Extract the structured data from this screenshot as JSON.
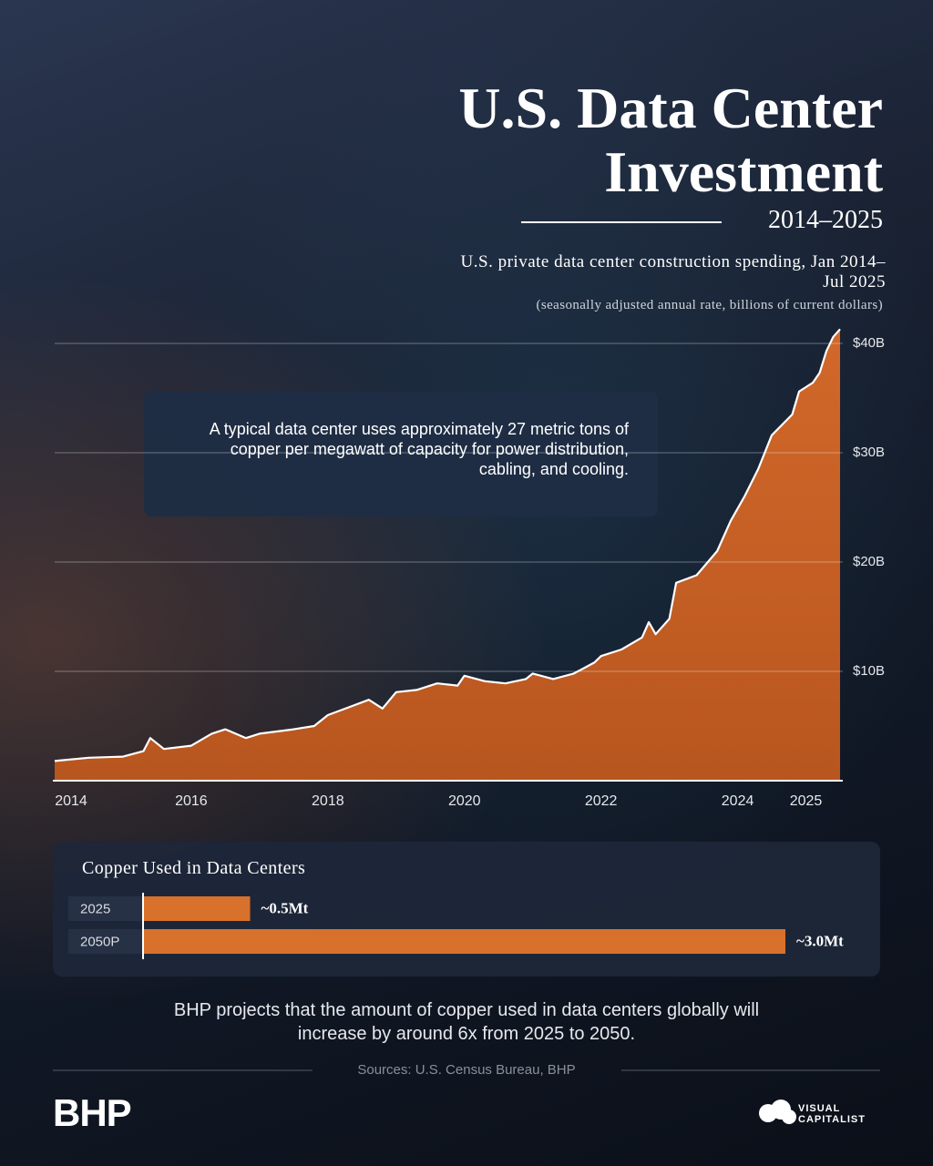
{
  "chart_data": [
    {
      "type": "area",
      "title": "U.S. Data Center Investment",
      "subtitle": "2014–2025",
      "description": "U.S. private data center construction spending, Jan 2014–Jul 2025",
      "note": "(seasonally adjusted annual rate, billions of current dollars)",
      "annotation": "A typical data center uses approximately 27 metric tons of copper per megawatt of capacity for power distribution, cabling, and cooling.",
      "color": "#d2682a",
      "x": [
        2014.0,
        2014.5,
        2015.0,
        2015.3,
        2015.4,
        2015.6,
        2016.0,
        2016.3,
        2016.5,
        2016.8,
        2017.0,
        2017.5,
        2017.8,
        2018.0,
        2018.3,
        2018.6,
        2018.8,
        2019.0,
        2019.3,
        2019.6,
        2019.9,
        2020.0,
        2020.3,
        2020.6,
        2020.9,
        2021.0,
        2021.3,
        2021.6,
        2021.9,
        2022.0,
        2022.3,
        2022.6,
        2022.7,
        2022.8,
        2023.0,
        2023.1,
        2023.4,
        2023.7,
        2023.9,
        2024.1,
        2024.3,
        2024.5,
        2024.8,
        2024.9,
        2025.0,
        2025.1,
        2025.2,
        2025.3,
        2025.4,
        2025.5
      ],
      "values": [
        1.8,
        2.1,
        2.2,
        2.7,
        3.9,
        2.9,
        3.2,
        4.3,
        4.7,
        3.9,
        4.3,
        4.7,
        5.0,
        6.0,
        6.7,
        7.4,
        6.6,
        8.1,
        8.3,
        8.9,
        8.7,
        9.6,
        9.1,
        8.9,
        9.3,
        9.8,
        9.3,
        9.8,
        10.8,
        11.4,
        12.0,
        13.1,
        14.5,
        13.4,
        14.8,
        18.1,
        18.8,
        21.0,
        23.8,
        26.0,
        28.5,
        31.6,
        33.5,
        35.6,
        36.0,
        36.4,
        37.3,
        39.3,
        40.6,
        41.3
      ],
      "xlim": [
        2014,
        2025.5
      ],
      "xticks": [
        2014,
        2016,
        2018,
        2020,
        2022,
        2024,
        2025
      ],
      "ylim": [
        0,
        42
      ],
      "yticks": [
        {
          "value": 10,
          "label": "$10B"
        },
        {
          "value": 20,
          "label": "$20B"
        },
        {
          "value": 30,
          "label": "$30B"
        },
        {
          "value": 40,
          "label": "$40B"
        }
      ],
      "grid": true
    },
    {
      "type": "bar",
      "title": "Copper Used in Data Centers",
      "categories": [
        "2025",
        "2050P"
      ],
      "values": [
        0.5,
        3.0
      ],
      "value_labels": [
        "~0.5Mt",
        "~3.0Mt"
      ],
      "color": "#d8712c"
    }
  ],
  "footer": {
    "note": "BHP projects that the amount of copper used in data centers globally will increase by around 6x from 2025 to 2050.",
    "source": "Sources: U.S. Census Bureau, BHP",
    "logo": "BHP",
    "brand": "VISUAL CAPITALIST"
  }
}
